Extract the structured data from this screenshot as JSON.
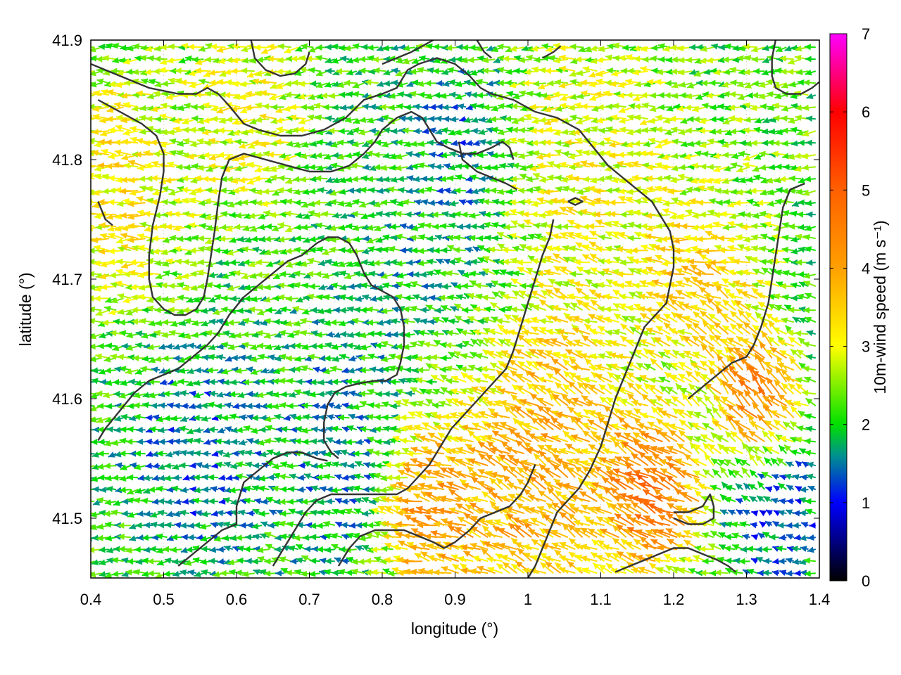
{
  "chart_data": {
    "type": "quiver",
    "title": "",
    "xlabel": "longitude (°)",
    "ylabel": "latitude (°)",
    "xlim": [
      0.4,
      1.4
    ],
    "ylim": [
      41.45,
      41.9
    ],
    "xticks": [
      "0.4",
      "0.5",
      "0.6",
      "0.7",
      "0.8",
      "0.9",
      "1",
      "1.1",
      "1.2",
      "1.3",
      "1.4"
    ],
    "xtick_values": [
      0.4,
      0.5,
      0.6,
      0.7,
      0.8,
      0.9,
      1.0,
      1.1,
      1.2,
      1.3,
      1.4
    ],
    "yticks": [
      "41.5",
      "41.6",
      "41.7",
      "41.8",
      "41.9"
    ],
    "ytick_values": [
      41.5,
      41.6,
      41.7,
      41.8,
      41.9
    ],
    "grid": "dotted vertical lines at x ticks",
    "colorbar": {
      "label": "10m-wind speed (m s⁻¹)",
      "range": [
        0,
        7
      ],
      "ticks": [
        "0",
        "1",
        "2",
        "3",
        "4",
        "5",
        "6",
        "7"
      ],
      "tick_values": [
        0,
        1,
        2,
        3,
        4,
        5,
        6,
        7
      ],
      "colormap": [
        {
          "v": 0,
          "c": "#000000"
        },
        {
          "v": 1,
          "c": "#0000ff"
        },
        {
          "v": 1.6,
          "c": "#009090"
        },
        {
          "v": 2,
          "c": "#00e000"
        },
        {
          "v": 3,
          "c": "#ffff00"
        },
        {
          "v": 4,
          "c": "#ffa000"
        },
        {
          "v": 5,
          "c": "#ff6000"
        },
        {
          "v": 6,
          "c": "#ff0000"
        },
        {
          "v": 7,
          "c": "#ff00ff"
        }
      ]
    },
    "field": {
      "lon_step": 0.01,
      "lat_step": 0.01,
      "background_direction_deg": 185,
      "speed_regions": [
        {
          "lon": 0.45,
          "lat": 41.78,
          "speed": 3.5,
          "radius": 0.09
        },
        {
          "lon": 0.62,
          "lat": 41.84,
          "speed": 3.2,
          "radius": 0.08
        },
        {
          "lon": 0.75,
          "lat": 41.55,
          "speed": 1.5,
          "radius": 0.09
        },
        {
          "lon": 0.55,
          "lat": 41.55,
          "speed": 1.3,
          "radius": 0.08
        },
        {
          "lon": 0.9,
          "lat": 41.68,
          "speed": 1.7,
          "radius": 0.12
        },
        {
          "lon": 0.92,
          "lat": 41.81,
          "speed": 1.4,
          "radius": 0.06
        },
        {
          "lon": 1.1,
          "lat": 41.78,
          "speed": 3.3,
          "radius": 0.12
        },
        {
          "lon": 1.25,
          "lat": 41.7,
          "speed": 3.9,
          "radius": 0.08
        },
        {
          "lon": 1.0,
          "lat": 41.55,
          "speed": 4.4,
          "radius": 0.14
        },
        {
          "lon": 0.87,
          "lat": 41.51,
          "speed": 4.8,
          "radius": 0.06
        },
        {
          "lon": 1.18,
          "lat": 41.52,
          "speed": 5.2,
          "radius": 0.06
        },
        {
          "lon": 1.32,
          "lat": 41.6,
          "speed": 5.0,
          "radius": 0.05
        },
        {
          "lon": 1.35,
          "lat": 41.5,
          "speed": 1.2,
          "radius": 0.06
        },
        {
          "lon": 1.3,
          "lat": 41.82,
          "speed": 2.4,
          "radius": 0.1
        }
      ],
      "direction_regions": [
        {
          "lon": 1.05,
          "lat": 41.53,
          "direction_deg": 135,
          "radius": 0.2
        },
        {
          "lon": 1.3,
          "lat": 41.6,
          "direction_deg": 115,
          "radius": 0.1
        },
        {
          "lon": 0.45,
          "lat": 41.8,
          "direction_deg": 175,
          "radius": 0.1
        },
        {
          "lon": 0.7,
          "lat": 41.5,
          "direction_deg": 165,
          "radius": 0.1
        }
      ]
    },
    "contours": [
      [
        [
          0.4,
          41.88
        ],
        [
          0.44,
          41.87
        ],
        [
          0.48,
          41.86
        ],
        [
          0.52,
          41.855
        ],
        [
          0.545,
          41.855
        ],
        [
          0.56,
          41.86
        ],
        [
          0.575,
          41.855
        ],
        [
          0.59,
          41.845
        ],
        [
          0.61,
          41.83
        ],
        [
          0.63,
          41.825
        ],
        [
          0.66,
          41.82
        ],
        [
          0.69,
          41.82
        ],
        [
          0.72,
          41.825
        ],
        [
          0.75,
          41.835
        ],
        [
          0.775,
          41.85
        ],
        [
          0.8,
          41.855
        ],
        [
          0.82,
          41.86
        ],
        [
          0.835,
          41.875
        ],
        [
          0.85,
          41.88
        ],
        [
          0.875,
          41.885
        ],
        [
          0.9,
          41.88
        ],
        [
          0.92,
          41.87
        ],
        [
          0.935,
          41.86
        ],
        [
          0.95,
          41.855
        ],
        [
          0.98,
          41.85
        ],
        [
          1.01,
          41.84
        ],
        [
          1.04,
          41.835
        ],
        [
          1.07,
          41.825
        ],
        [
          1.09,
          41.81
        ],
        [
          1.11,
          41.795
        ],
        [
          1.13,
          41.785
        ],
        [
          1.15,
          41.775
        ],
        [
          1.17,
          41.765
        ],
        [
          1.185,
          41.75
        ],
        [
          1.195,
          41.74
        ],
        [
          1.2,
          41.725
        ],
        [
          1.2,
          41.71
        ],
        [
          1.195,
          41.695
        ],
        [
          1.19,
          41.68
        ],
        [
          1.175,
          41.67
        ],
        [
          1.16,
          41.66
        ],
        [
          1.15,
          41.645
        ],
        [
          1.14,
          41.63
        ],
        [
          1.13,
          41.615
        ],
        [
          1.12,
          41.6
        ],
        [
          1.11,
          41.58
        ],
        [
          1.1,
          41.56
        ],
        [
          1.085,
          41.54
        ],
        [
          1.07,
          41.525
        ],
        [
          1.055,
          41.515
        ],
        [
          1.04,
          41.505
        ],
        [
          1.03,
          41.49
        ],
        [
          1.02,
          41.475
        ],
        [
          1.01,
          41.46
        ],
        [
          1.0,
          41.45
        ]
      ],
      [
        [
          0.41,
          41.85
        ],
        [
          0.44,
          41.84
        ],
        [
          0.47,
          41.83
        ],
        [
          0.49,
          41.82
        ],
        [
          0.5,
          41.805
        ],
        [
          0.5,
          41.79
        ],
        [
          0.495,
          41.77
        ],
        [
          0.485,
          41.745
        ],
        [
          0.48,
          41.72
        ],
        [
          0.48,
          41.7
        ],
        [
          0.485,
          41.685
        ],
        [
          0.5,
          41.675
        ],
        [
          0.515,
          41.67
        ],
        [
          0.53,
          41.67
        ],
        [
          0.545,
          41.675
        ],
        [
          0.555,
          41.685
        ],
        [
          0.56,
          41.7
        ],
        [
          0.565,
          41.72
        ],
        [
          0.57,
          41.74
        ],
        [
          0.575,
          41.765
        ],
        [
          0.58,
          41.785
        ],
        [
          0.59,
          41.8
        ],
        [
          0.61,
          41.805
        ],
        [
          0.64,
          41.8
        ],
        [
          0.67,
          41.795
        ],
        [
          0.7,
          41.79
        ],
        [
          0.73,
          41.79
        ],
        [
          0.755,
          41.795
        ],
        [
          0.775,
          41.805
        ],
        [
          0.79,
          41.815
        ],
        [
          0.8,
          41.825
        ],
        [
          0.82,
          41.835
        ],
        [
          0.84,
          41.84
        ],
        [
          0.855,
          41.835
        ],
        [
          0.865,
          41.825
        ],
        [
          0.875,
          41.815
        ],
        [
          0.89,
          41.81
        ],
        [
          0.91,
          41.805
        ],
        [
          0.93,
          41.805
        ],
        [
          0.95,
          41.81
        ],
        [
          0.965,
          41.815
        ],
        [
          0.975,
          41.81
        ],
        [
          0.98,
          41.8
        ]
      ],
      [
        [
          0.41,
          41.565
        ],
        [
          0.42,
          41.575
        ],
        [
          0.44,
          41.59
        ],
        [
          0.46,
          41.605
        ],
        [
          0.48,
          41.615
        ],
        [
          0.5,
          41.62
        ],
        [
          0.52,
          41.625
        ],
        [
          0.54,
          41.635
        ],
        [
          0.56,
          41.645
        ],
        [
          0.575,
          41.655
        ],
        [
          0.59,
          41.67
        ],
        [
          0.61,
          41.685
        ],
        [
          0.63,
          41.695
        ],
        [
          0.65,
          41.705
        ],
        [
          0.67,
          41.715
        ],
        [
          0.69,
          41.72
        ],
        [
          0.71,
          41.73
        ],
        [
          0.725,
          41.735
        ],
        [
          0.74,
          41.735
        ],
        [
          0.755,
          41.73
        ],
        [
          0.765,
          41.72
        ],
        [
          0.775,
          41.705
        ],
        [
          0.785,
          41.695
        ],
        [
          0.8,
          41.69
        ],
        [
          0.815,
          41.685
        ],
        [
          0.825,
          41.675
        ],
        [
          0.83,
          41.66
        ],
        [
          0.83,
          41.645
        ],
        [
          0.825,
          41.63
        ],
        [
          0.82,
          41.62
        ],
        [
          0.805,
          41.615
        ],
        [
          0.79,
          41.615
        ],
        [
          0.77,
          41.613
        ],
        [
          0.75,
          41.61
        ],
        [
          0.735,
          41.605
        ],
        [
          0.725,
          41.595
        ],
        [
          0.72,
          41.58
        ],
        [
          0.72,
          41.565
        ],
        [
          0.73,
          41.555
        ],
        [
          0.74,
          41.55
        ]
      ],
      [
        [
          0.52,
          41.46
        ],
        [
          0.54,
          41.47
        ],
        [
          0.56,
          41.48
        ],
        [
          0.58,
          41.49
        ],
        [
          0.6,
          41.495
        ],
        [
          0.6,
          41.51
        ],
        [
          0.61,
          41.53
        ],
        [
          0.63,
          41.54
        ],
        [
          0.65,
          41.55
        ],
        [
          0.67,
          41.555
        ],
        [
          0.69,
          41.555
        ],
        [
          0.71,
          41.55
        ],
        [
          0.725,
          41.548
        ]
      ],
      [
        [
          0.65,
          41.46
        ],
        [
          0.665,
          41.475
        ],
        [
          0.68,
          41.49
        ],
        [
          0.695,
          41.505
        ],
        [
          0.71,
          41.515
        ],
        [
          0.73,
          41.52
        ],
        [
          0.75,
          41.52
        ],
        [
          0.775,
          41.52
        ],
        [
          0.8,
          41.52
        ],
        [
          0.82,
          41.52
        ],
        [
          0.835,
          41.525
        ],
        [
          0.85,
          41.535
        ],
        [
          0.865,
          41.545
        ],
        [
          0.88,
          41.56
        ],
        [
          0.895,
          41.575
        ],
        [
          0.91,
          41.585
        ],
        [
          0.925,
          41.595
        ],
        [
          0.94,
          41.605
        ],
        [
          0.955,
          41.615
        ],
        [
          0.97,
          41.625
        ],
        [
          0.98,
          41.64
        ],
        [
          0.99,
          41.66
        ],
        [
          1.0,
          41.68
        ],
        [
          1.01,
          41.7
        ],
        [
          1.02,
          41.72
        ],
        [
          1.03,
          41.735
        ],
        [
          1.035,
          41.75
        ]
      ],
      [
        [
          0.74,
          41.46
        ],
        [
          0.755,
          41.475
        ],
        [
          0.77,
          41.485
        ],
        [
          0.79,
          41.49
        ],
        [
          0.81,
          41.49
        ],
        [
          0.83,
          41.49
        ],
        [
          0.85,
          41.485
        ],
        [
          0.87,
          41.48
        ],
        [
          0.885,
          41.475
        ],
        [
          0.9,
          41.48
        ],
        [
          0.92,
          41.49
        ],
        [
          0.935,
          41.5
        ],
        [
          0.955,
          41.505
        ],
        [
          0.975,
          41.51
        ],
        [
          0.99,
          41.52
        ],
        [
          1.0,
          41.53
        ],
        [
          1.01,
          41.545
        ]
      ],
      [
        [
          1.12,
          41.455
        ],
        [
          1.14,
          41.46
        ],
        [
          1.16,
          41.465
        ],
        [
          1.18,
          41.47
        ],
        [
          1.2,
          41.475
        ],
        [
          1.22,
          41.475
        ],
        [
          1.24,
          41.47
        ],
        [
          1.26,
          41.465
        ],
        [
          1.275,
          41.46
        ],
        [
          1.285,
          41.455
        ]
      ],
      [
        [
          1.2,
          41.505
        ],
        [
          1.22,
          41.505
        ],
        [
          1.24,
          41.51
        ],
        [
          1.25,
          41.52
        ],
        [
          1.255,
          41.51
        ],
        [
          1.255,
          41.5
        ],
        [
          1.24,
          41.495
        ],
        [
          1.22,
          41.495
        ],
        [
          1.2,
          41.5
        ]
      ],
      [
        [
          1.22,
          41.6
        ],
        [
          1.24,
          41.61
        ],
        [
          1.26,
          41.62
        ],
        [
          1.28,
          41.63
        ],
        [
          1.3,
          41.635
        ],
        [
          1.31,
          41.645
        ],
        [
          1.32,
          41.66
        ],
        [
          1.33,
          41.68
        ],
        [
          1.335,
          41.7
        ],
        [
          1.34,
          41.72
        ],
        [
          1.345,
          41.74
        ],
        [
          1.35,
          41.76
        ],
        [
          1.36,
          41.775
        ],
        [
          1.38,
          41.78
        ]
      ],
      [
        [
          1.34,
          41.9
        ],
        [
          1.335,
          41.885
        ],
        [
          1.335,
          41.87
        ],
        [
          1.34,
          41.86
        ],
        [
          1.355,
          41.855
        ],
        [
          1.375,
          41.855
        ],
        [
          1.39,
          41.86
        ],
        [
          1.4,
          41.865
        ]
      ],
      [
        [
          0.62,
          41.9
        ],
        [
          0.625,
          41.885
        ],
        [
          0.64,
          41.875
        ],
        [
          0.66,
          41.87
        ],
        [
          0.68,
          41.872
        ],
        [
          0.695,
          41.88
        ],
        [
          0.7,
          41.89
        ]
      ],
      [
        [
          0.8,
          41.88
        ],
        [
          0.82,
          41.885
        ],
        [
          0.84,
          41.89
        ],
        [
          0.855,
          41.895
        ],
        [
          0.87,
          41.9
        ]
      ],
      [
        [
          0.93,
          41.9
        ],
        [
          0.94,
          41.89
        ],
        [
          0.95,
          41.885
        ]
      ],
      [
        [
          1.02,
          41.885
        ],
        [
          1.035,
          41.89
        ],
        [
          1.045,
          41.895
        ]
      ],
      [
        [
          0.905,
          41.815
        ],
        [
          0.91,
          41.8
        ],
        [
          0.93,
          41.79
        ],
        [
          0.95,
          41.785
        ],
        [
          0.97,
          41.78
        ],
        [
          0.985,
          41.775
        ]
      ],
      [
        [
          1.055,
          41.765
        ],
        [
          1.065,
          41.768
        ],
        [
          1.075,
          41.765
        ],
        [
          1.065,
          41.762
        ],
        [
          1.055,
          41.765
        ]
      ],
      [
        [
          0.41,
          41.765
        ],
        [
          0.42,
          41.75
        ],
        [
          0.43,
          41.745
        ]
      ]
    ]
  }
}
